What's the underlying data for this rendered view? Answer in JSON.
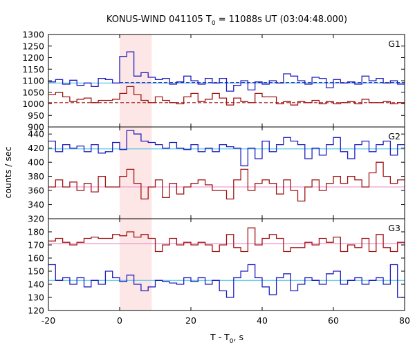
{
  "chart_data": {
    "type": "line",
    "title": "KONUS-WIND 041105 T",
    "title_sub": "0",
    "title_tail": " = 11088s UT (03:04:48.000)",
    "xlabel": "T - T",
    "xlabel_sub": "0",
    "xlabel_tail": ", s",
    "ylabel": "counts / sec",
    "xlim": [
      -20,
      80
    ],
    "x_ticks": [
      -20,
      0,
      20,
      40,
      60,
      80
    ],
    "grid": false,
    "highlight_interval": [
      0,
      9
    ],
    "colors": {
      "blue": "#1f1fbf",
      "red": "#a01515",
      "cyan": "#59c8e8",
      "pink": "#f090d0",
      "highlight": "#fde6e6"
    },
    "bin_width": 2,
    "bin_start": -20,
    "panels": [
      {
        "label": "G1",
        "ylim": [
          900,
          1300
        ],
        "y_ticks": [
          900,
          950,
          1000,
          1050,
          1100,
          1150,
          1200,
          1250,
          1300
        ],
        "series": [
          {
            "color": "blue",
            "values": [
              1095,
              1105,
              1085,
              1102,
              1080,
              1090,
              1075,
              1110,
              1105,
              1090,
              1205,
              1225,
              1120,
              1135,
              1115,
              1105,
              1110,
              1085,
              1095,
              1120,
              1100,
              1085,
              1110,
              1090,
              1110,
              1055,
              1080,
              1100,
              1060,
              1095,
              1085,
              1100,
              1090,
              1130,
              1120,
              1100,
              1085,
              1115,
              1110,
              1070,
              1105,
              1090,
              1095,
              1085,
              1120,
              1100,
              1110,
              1090,
              1100,
              1085
            ]
          },
          {
            "color": "red",
            "values": [
              1040,
              1050,
              1030,
              1010,
              1020,
              1025,
              1005,
              1015,
              1015,
              1020,
              1045,
              1075,
              1040,
              1015,
              1005,
              1030,
              1015,
              1005,
              1000,
              1030,
              1045,
              1010,
              1020,
              1045,
              1025,
              995,
              1025,
              1010,
              1005,
              1045,
              1030,
              1030,
              1000,
              1010,
              995,
              1010,
              1005,
              1015,
              1000,
              1010,
              1000,
              1005,
              1010,
              1000,
              1020,
              1005,
              1005,
              1010,
              1000,
              1005
            ]
          }
        ],
        "background": [
          {
            "color": "cyan",
            "value": 1090,
            "dashed": false,
            "x0": -20,
            "x1": 80
          },
          {
            "color": "blue",
            "value": 1092,
            "dashed": true,
            "x0": 0,
            "x1": 80
          },
          {
            "color": "red",
            "value": 1005,
            "dashed": true,
            "x0": -20,
            "x1": 80
          }
        ]
      },
      {
        "label": "G2",
        "ylim": [
          320,
          450
        ],
        "y_ticks": [
          320,
          340,
          360,
          380,
          400,
          420,
          440
        ],
        "series": [
          {
            "color": "blue",
            "values": [
              430,
              415,
              425,
              420,
              423,
              415,
              425,
              413,
              415,
              428,
              418,
              445,
              440,
              430,
              428,
              425,
              420,
              428,
              420,
              418,
              425,
              415,
              420,
              415,
              425,
              422,
              420,
              395,
              420,
              405,
              430,
              415,
              425,
              435,
              430,
              425,
              405,
              420,
              410,
              425,
              435,
              415,
              405,
              425,
              430,
              415,
              425,
              430,
              410,
              425
            ]
          },
          {
            "color": "red",
            "values": [
              365,
              375,
              365,
              372,
              360,
              370,
              358,
              380,
              365,
              365,
              380,
              390,
              370,
              348,
              365,
              375,
              350,
              370,
              355,
              365,
              370,
              375,
              368,
              360,
              360,
              348,
              375,
              390,
              360,
              370,
              375,
              370,
              355,
              375,
              360,
              345,
              365,
              375,
              360,
              370,
              380,
              370,
              380,
              375,
              365,
              385,
              400,
              380,
              370,
              375
            ]
          }
        ],
        "background": [
          {
            "color": "cyan",
            "value": 419,
            "dashed": false,
            "x0": -20,
            "x1": 80
          },
          {
            "color": "pink",
            "value": 365,
            "dashed": false,
            "x0": -20,
            "x1": 80
          }
        ]
      },
      {
        "label": "G3",
        "ylim": [
          120,
          190
        ],
        "y_ticks": [
          120,
          130,
          140,
          150,
          160,
          170,
          180
        ],
        "series": [
          {
            "color": "red",
            "values": [
              173,
              175,
              172,
              170,
              172,
              175,
              176,
              175,
              175,
              178,
              177,
              180,
              176,
              178,
              175,
              165,
              170,
              175,
              170,
              172,
              170,
              172,
              170,
              165,
              170,
              178,
              168,
              165,
              183,
              170,
              175,
              178,
              175,
              165,
              168,
              168,
              172,
              170,
              175,
              172,
              176,
              165,
              170,
              168,
              175,
              165,
              178,
              168,
              165,
              172
            ]
          },
          {
            "color": "blue",
            "values": [
              155,
              143,
              145,
              140,
              145,
              138,
              143,
              140,
              150,
              145,
              142,
              147,
              140,
              135,
              138,
              143,
              142,
              141,
              140,
              145,
              142,
              145,
              140,
              143,
              135,
              130,
              145,
              150,
              155,
              145,
              138,
              132,
              145,
              148,
              135,
              140,
              145,
              143,
              140,
              148,
              150,
              140,
              143,
              145,
              140,
              143,
              145,
              140,
              155,
              130
            ]
          }
        ],
        "background": [
          {
            "color": "pink",
            "value": 171,
            "dashed": false,
            "x0": -20,
            "x1": 80
          },
          {
            "color": "cyan",
            "value": 143,
            "dashed": false,
            "x0": -20,
            "x1": 80
          }
        ]
      }
    ]
  }
}
